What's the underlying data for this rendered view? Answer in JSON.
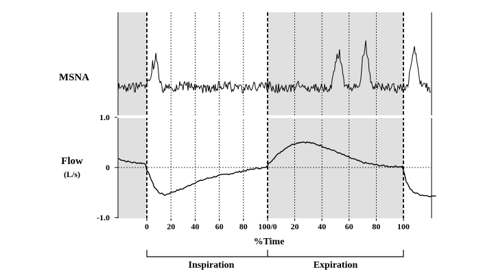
{
  "chart_data": [
    {
      "type": "line",
      "panel": "top",
      "ylabel": "MSNA",
      "x_unit": "%Time",
      "shaded_phase": [
        "pre-inspiration",
        "expiration"
      ],
      "burst_peaks": [
        {
          "phase": "inspiration",
          "x": 7
        },
        {
          "phase": "expiration",
          "x": 52
        },
        {
          "phase": "expiration",
          "x": 72
        },
        {
          "phase": "post-expiration",
          "x": 8
        }
      ]
    },
    {
      "type": "line",
      "panel": "bottom",
      "ylabel": "Flow",
      "yunit": "(L/s)",
      "ylim": [
        -1.0,
        1.0
      ],
      "yticks": [
        "1.0",
        "0",
        "-1.0"
      ],
      "xlabel": "%Time",
      "xticks": [
        "0",
        "20",
        "40",
        "60",
        "80",
        "100/0",
        "20",
        "40",
        "60",
        "80",
        "100"
      ],
      "segments": [
        {
          "phase": "pre",
          "x": [
            -24,
            -18,
            -12,
            -6,
            -2,
            0
          ],
          "y": [
            0.18,
            0.13,
            0.1,
            0.09,
            0.08,
            0.05
          ]
        },
        {
          "phase": "inspiration",
          "x": [
            0,
            3,
            6,
            10,
            15,
            20,
            25,
            30,
            40,
            50,
            60,
            70,
            80,
            90,
            100
          ],
          "y": [
            -0.05,
            -0.2,
            -0.38,
            -0.5,
            -0.55,
            -0.5,
            -0.46,
            -0.42,
            -0.3,
            -0.22,
            -0.16,
            -0.12,
            -0.07,
            -0.02,
            0.0
          ]
        },
        {
          "phase": "expiration",
          "x": [
            0,
            5,
            10,
            15,
            20,
            25,
            30,
            35,
            40,
            50,
            60,
            70,
            80,
            90,
            100
          ],
          "y": [
            0.05,
            0.2,
            0.32,
            0.42,
            0.48,
            0.51,
            0.5,
            0.47,
            0.43,
            0.32,
            0.2,
            0.1,
            0.05,
            0.02,
            0.02
          ]
        },
        {
          "phase": "post",
          "x": [
            0,
            2,
            5,
            8,
            12,
            16,
            20,
            24
          ],
          "y": [
            -0.05,
            -0.28,
            -0.43,
            -0.5,
            -0.54,
            -0.56,
            -0.57,
            -0.57
          ]
        }
      ]
    }
  ],
  "phases": {
    "inspiration": "Inspiration",
    "expiration": "Expiration"
  },
  "colors": {
    "shade": "#e0e0e0",
    "trace": "#000000"
  }
}
